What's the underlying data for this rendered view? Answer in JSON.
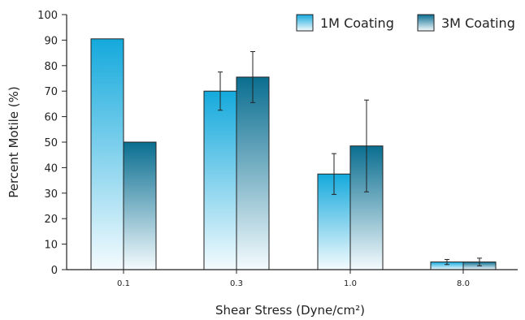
{
  "chart_data": {
    "type": "bar",
    "categories": [
      "0.1",
      "0.3",
      "1.0",
      "8.0"
    ],
    "series": [
      {
        "name": "1M Coating",
        "values": [
          90.5,
          70,
          37.5,
          3
        ],
        "error": [
          0,
          7.5,
          8,
          1
        ],
        "color_top": "#14a9dc",
        "color_bottom": "#f4fbfe"
      },
      {
        "name": "3M Coating",
        "values": [
          50,
          75.5,
          48.5,
          3
        ],
        "error": [
          0,
          10,
          18,
          1.5
        ],
        "color_top": "#0a6e90",
        "color_bottom": "#f4fbfe"
      }
    ],
    "xlabel": "Shear Stress (Dyne/cm²)",
    "ylabel": "Percent Motile (%)",
    "ylim": [
      0,
      100
    ],
    "yticks": [
      0,
      10,
      20,
      30,
      40,
      50,
      60,
      70,
      80,
      90,
      100
    ],
    "grid": false,
    "legend_position": "top-right"
  }
}
